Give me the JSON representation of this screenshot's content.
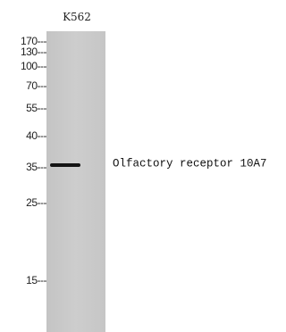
{
  "lane_label": "K562",
  "markers": [
    "170---",
    "130---",
    "100---",
    "70---",
    "55---",
    "40---",
    "35---",
    "25---",
    "15---"
  ],
  "band_label": "Olfactory receptor 10A7"
}
